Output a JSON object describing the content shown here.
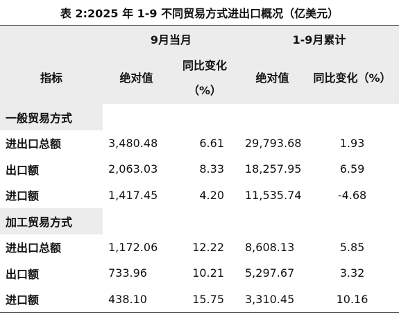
{
  "title": "表 2:2025 年 1-9 不同贸易方式进出口概况（亿美元）",
  "table": {
    "group_headers": [
      "9月当月",
      "1-9月累计"
    ],
    "headers": [
      "指标",
      "绝对值",
      "同比变化（%）",
      "绝对值",
      "同比变化（%）"
    ],
    "sections": [
      {
        "name": "一般贸易方式",
        "rows": [
          [
            "进出口总额",
            "3,480.48",
            "6.61",
            "29,793.68",
            "1.93"
          ],
          [
            "出口额",
            "2,063.03",
            "8.33",
            "18,257.95",
            "6.59"
          ],
          [
            "进口额",
            "1,417.45",
            "4.20",
            "11,535.74",
            "-4.68"
          ]
        ]
      },
      {
        "name": "加工贸易方式",
        "rows": [
          [
            "进出口总额",
            "1,172.06",
            "12.22",
            "8,608.13",
            "5.85"
          ],
          [
            "出口额",
            "733.96",
            "10.21",
            "5,297.67",
            "3.32"
          ],
          [
            "进口额",
            "438.10",
            "15.75",
            "3,310.45",
            "10.16"
          ]
        ]
      }
    ]
  }
}
